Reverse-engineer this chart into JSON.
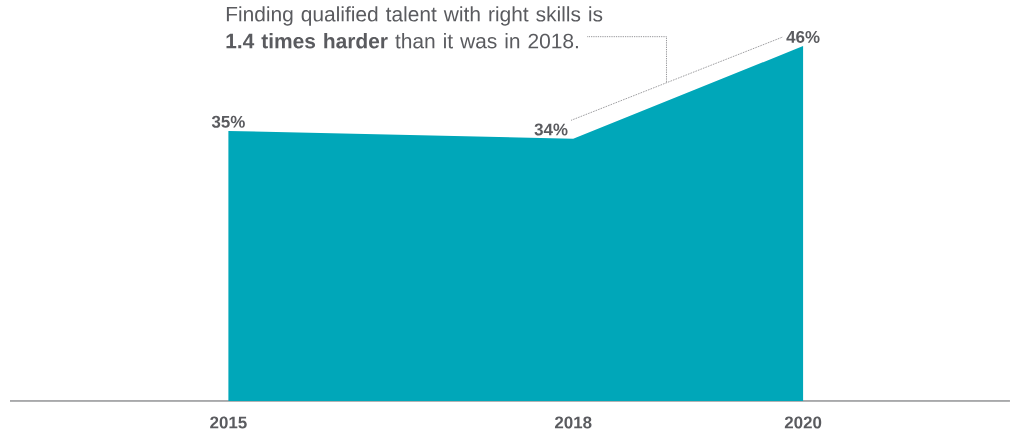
{
  "chart_data": {
    "type": "area",
    "x": [
      2015,
      2018,
      2020
    ],
    "values": [
      35,
      34,
      46
    ],
    "color": "#00a7b9",
    "value_labels": [
      "35%",
      "34%",
      "46%"
    ],
    "xlim": [
      2013.1,
      2021.8
    ],
    "xticks": [
      2015,
      2018,
      2020
    ],
    "tick_labels": "x",
    "grid": false,
    "annotations": [
      "Finding qualified talent with right skills is **1.4 times harder** than it was in 2018."
    ]
  }
}
